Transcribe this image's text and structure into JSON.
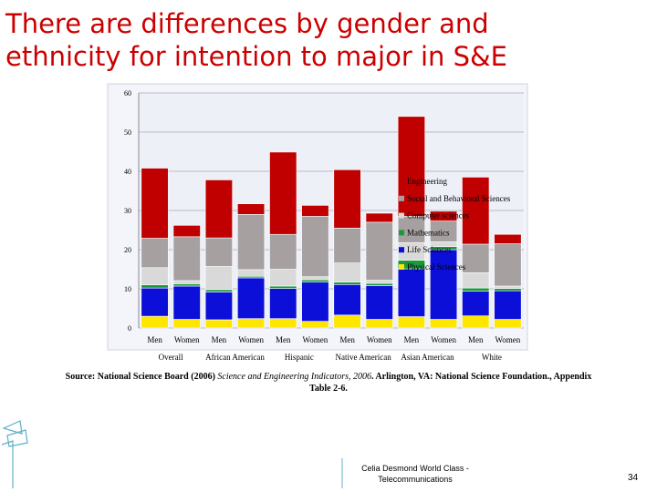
{
  "slide": {
    "title_line1": "There are differences by gender and",
    "title_line2": "ethnicity for intention to major in S&E",
    "footer_line1": "Celia Desmond World Class -",
    "footer_line2": "Telecommunications",
    "page_number": "34"
  },
  "source": {
    "prefix": "Source: National Science Board (2006) ",
    "italic": "Science and Engineering Indicators, 2006",
    "suffix": ". Arlington, VA: National Science Foundation., Appendix Table 2-6."
  },
  "colors": {
    "title": "#cc0000",
    "engineering": "#c00000",
    "social": "#a6a0a0",
    "computer": "#d9d9d9",
    "mathematics": "#1a9a3a",
    "life": "#0b0fd8",
    "physical": "#ffe600",
    "plot_bg": "#eef0f8",
    "grid": "#b8bbc6"
  },
  "chart_data": {
    "type": "bar",
    "stacked": true,
    "categories": [
      "Men",
      "Women",
      "Men",
      "Women",
      "Men",
      "Women",
      "Men",
      "Women",
      "Men",
      "Women",
      "Men",
      "Women"
    ],
    "groups": [
      {
        "label": "Overall",
        "span": [
          0,
          1
        ]
      },
      {
        "label": "African American",
        "span": [
          2,
          3
        ]
      },
      {
        "label": "Hispanic",
        "span": [
          4,
          5
        ]
      },
      {
        "label": "Native American",
        "span": [
          6,
          7
        ]
      },
      {
        "label": "Asian American",
        "span": [
          8,
          9
        ]
      },
      {
        "label": "White",
        "span": [
          10,
          11
        ]
      }
    ],
    "series": [
      {
        "name": "Physical Sciences",
        "color_key": "physical",
        "values": [
          3.0,
          2.2,
          2.1,
          2.4,
          2.4,
          1.7,
          3.3,
          2.2,
          2.9,
          2.2,
          3.1,
          2.2
        ]
      },
      {
        "name": "Life Sciences",
        "color_key": "life",
        "values": [
          7.2,
          8.5,
          7.1,
          10.4,
          7.7,
          10.0,
          7.8,
          8.6,
          12.2,
          17.8,
          6.3,
          7.3
        ]
      },
      {
        "name": "Mathematics",
        "color_key": "mathematics",
        "values": [
          0.8,
          0.6,
          0.6,
          0.4,
          0.6,
          0.6,
          0.6,
          0.6,
          2.2,
          0.8,
          0.8,
          0.6
        ]
      },
      {
        "name": "Computer sciences",
        "color_key": "computer",
        "values": [
          4.4,
          0.8,
          5.9,
          1.7,
          4.3,
          0.8,
          4.9,
          0.8,
          4.5,
          1.2,
          3.9,
          0.6
        ]
      },
      {
        "name": "Social and Behavioral Sciences",
        "color_key": "social",
        "values": [
          7.5,
          11.2,
          7.3,
          14.1,
          8.9,
          15.4,
          8.9,
          14.8,
          6.7,
          5.3,
          7.3,
          10.8
        ]
      },
      {
        "name": "Engineering",
        "color_key": "engineering",
        "values": [
          17.9,
          2.9,
          14.8,
          2.7,
          21.0,
          2.8,
          14.9,
          2.3,
          25.5,
          2.5,
          17.1,
          2.4
        ]
      }
    ],
    "legend_order": [
      "Engineering",
      "Social and Behavioral Sciences",
      "Computer sciences",
      "Mathematics",
      "Life Sciences",
      "Physical Sciences"
    ],
    "legend_placement": "right, inside plot",
    "ylim": [
      0,
      60
    ],
    "yticks": [
      0,
      10,
      20,
      30,
      40,
      50,
      60
    ],
    "xlabel": "",
    "ylabel": "",
    "grid": true
  }
}
